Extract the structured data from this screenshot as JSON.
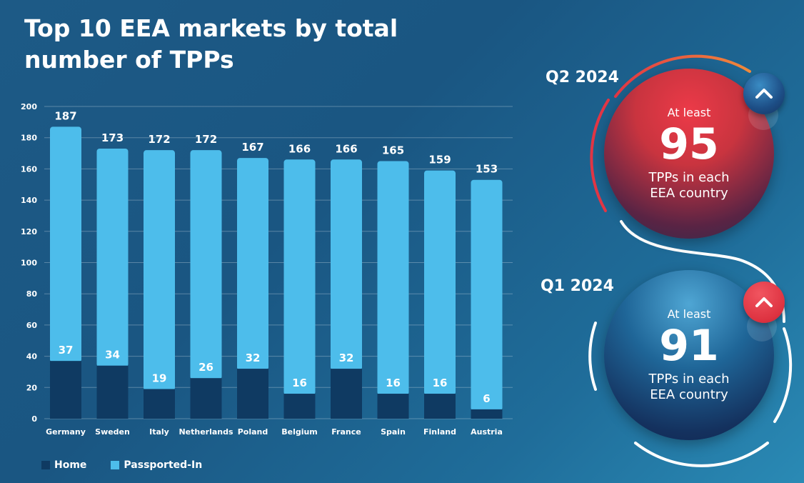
{
  "title": {
    "line1": "Top 10 EEA markets by total",
    "line2": "number of TPPs"
  },
  "colors": {
    "home": "#0f3a62",
    "passported": "#4dbdeb",
    "q2_accent": "#e23645",
    "q1_accent": "#1f5f93"
  },
  "chart_data": {
    "type": "bar",
    "stacked": true,
    "categories": [
      "Germany",
      "Sweden",
      "Italy",
      "Netherlands",
      "Poland",
      "Belgium",
      "France",
      "Spain",
      "Finland",
      "Austria"
    ],
    "series": [
      {
        "name": "Home",
        "values": [
          37,
          34,
          19,
          26,
          32,
          16,
          32,
          16,
          16,
          6
        ]
      },
      {
        "name": "Passported-In",
        "values": [
          150,
          139,
          153,
          146,
          135,
          150,
          134,
          149,
          143,
          147
        ]
      }
    ],
    "totals": [
      187,
      173,
      172,
      172,
      167,
      166,
      166,
      165,
      159,
      153
    ],
    "home_labels": [
      "37",
      "34",
      "19",
      "26",
      "32",
      "16",
      "32",
      "16",
      "16",
      "6"
    ],
    "total_labels": [
      "187",
      "173",
      "172",
      "172",
      "167",
      "166",
      "166",
      "165",
      "159",
      "153"
    ],
    "y_ticks": [
      0,
      20,
      40,
      60,
      80,
      100,
      120,
      140,
      160,
      180,
      200
    ],
    "ylim": [
      0,
      200
    ],
    "title": "Top 10 EEA markets by total number of TPPs",
    "xlabel": "",
    "ylabel": "",
    "legend": [
      "Home",
      "Passported-In"
    ],
    "legend_position": "bottom-left",
    "grid": true
  },
  "legend": {
    "home_label": "Home",
    "passported_label": "Passported-In"
  },
  "q2": {
    "label": "Q2 2024",
    "at_least": "At least",
    "number": "95",
    "desc_line1": "TPPs in each",
    "desc_line2": "EEA country",
    "badge_icon": "chevron-up-icon"
  },
  "q1": {
    "label": "Q1 2024",
    "at_least": "At least",
    "number": "91",
    "desc_line1": "TPPs in each",
    "desc_line2": "EEA country",
    "badge_icon": "chevron-up-icon"
  }
}
